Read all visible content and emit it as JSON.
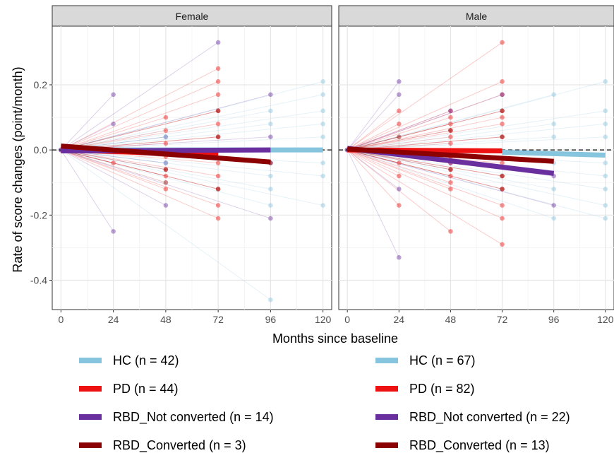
{
  "chart_data": {
    "type": "line",
    "xlabel": "Months since baseline",
    "ylabel": "Rate of score changes (point/month)",
    "x_ticks": [
      0,
      24,
      48,
      72,
      96,
      120
    ],
    "y_ticks": [
      0.2,
      0.0,
      -0.2,
      -0.4
    ],
    "y_tick_labels": [
      "0.2",
      "0.0",
      "-0.2",
      "-0.4"
    ],
    "xlim": [
      -4,
      124
    ],
    "ylim": [
      -0.49,
      0.38
    ],
    "grid": true,
    "reference_line": {
      "y": 0,
      "style": "dashed"
    },
    "colors": {
      "HC": "#87c4dd",
      "PD": "#ee1111",
      "RBD_Not converted": "#6a2f9f",
      "RBD_Converted": "#8b0000"
    },
    "panels": [
      {
        "facet": "Female",
        "legend": [
          {
            "group": "HC",
            "label": "HC (n = 42)"
          },
          {
            "group": "PD",
            "label": "PD (n = 44)"
          },
          {
            "group": "RBD_Not converted",
            "label": "RBD_Not converted (n = 14)"
          },
          {
            "group": "RBD_Converted",
            "label": "RBD_Converted (n = 3)"
          }
        ],
        "fitted_lines": [
          {
            "group": "HC",
            "x": [
              0,
              120
            ],
            "y": [
              0.0,
              0.0
            ]
          },
          {
            "group": "PD",
            "x": [
              0,
              72
            ],
            "y": [
              0.0,
              -0.015
            ]
          },
          {
            "group": "RBD_Not converted",
            "x": [
              0,
              96
            ],
            "y": [
              -0.003,
              0.0
            ]
          },
          {
            "group": "RBD_Converted",
            "x": [
              0,
              96
            ],
            "y": [
              0.012,
              -0.037
            ]
          }
        ],
        "individual_points": [
          {
            "group": "PD",
            "x": 24,
            "y": -0.04
          },
          {
            "group": "PD",
            "x": 48,
            "y": 0.1
          },
          {
            "group": "PD",
            "x": 48,
            "y": 0.06
          },
          {
            "group": "PD",
            "x": 48,
            "y": 0.02
          },
          {
            "group": "PD",
            "x": 48,
            "y": -0.02
          },
          {
            "group": "PD",
            "x": 48,
            "y": -0.06
          },
          {
            "group": "PD",
            "x": 48,
            "y": -0.08
          },
          {
            "group": "PD",
            "x": 48,
            "y": -0.12
          },
          {
            "group": "PD",
            "x": 72,
            "y": 0.25
          },
          {
            "group": "PD",
            "x": 72,
            "y": 0.21
          },
          {
            "group": "PD",
            "x": 72,
            "y": 0.17
          },
          {
            "group": "PD",
            "x": 72,
            "y": 0.12
          },
          {
            "group": "PD",
            "x": 72,
            "y": 0.08
          },
          {
            "group": "PD",
            "x": 72,
            "y": 0.04
          },
          {
            "group": "PD",
            "x": 72,
            "y": -0.04
          },
          {
            "group": "PD",
            "x": 72,
            "y": -0.08
          },
          {
            "group": "PD",
            "x": 72,
            "y": -0.12
          },
          {
            "group": "PD",
            "x": 72,
            "y": -0.17
          },
          {
            "group": "PD",
            "x": 72,
            "y": -0.21
          },
          {
            "group": "RBD_Not converted",
            "x": 24,
            "y": 0.17
          },
          {
            "group": "RBD_Not converted",
            "x": 24,
            "y": 0.08
          },
          {
            "group": "RBD_Not converted",
            "x": 24,
            "y": -0.25
          },
          {
            "group": "RBD_Not converted",
            "x": 48,
            "y": 0.04
          },
          {
            "group": "RBD_Not converted",
            "x": 48,
            "y": -0.04
          },
          {
            "group": "RBD_Not converted",
            "x": 48,
            "y": -0.17
          },
          {
            "group": "RBD_Not converted",
            "x": 72,
            "y": 0.33
          },
          {
            "group": "RBD_Not converted",
            "x": 96,
            "y": 0.17
          },
          {
            "group": "RBD_Not converted",
            "x": 96,
            "y": 0.04
          },
          {
            "group": "RBD_Not converted",
            "x": 96,
            "y": -0.04
          },
          {
            "group": "RBD_Not converted",
            "x": 96,
            "y": -0.21
          },
          {
            "group": "RBD_Converted",
            "x": 48,
            "y": -0.06
          },
          {
            "group": "RBD_Converted",
            "x": 48,
            "y": -0.1
          },
          {
            "group": "RBD_Converted",
            "x": 72,
            "y": 0.12
          },
          {
            "group": "RBD_Converted",
            "x": 72,
            "y": 0.04
          },
          {
            "group": "RBD_Converted",
            "x": 72,
            "y": -0.12
          },
          {
            "group": "RBD_Converted",
            "x": 96,
            "y": -0.04
          },
          {
            "group": "HC",
            "x": 48,
            "y": 0.04
          },
          {
            "group": "HC",
            "x": 48,
            "y": -0.04
          },
          {
            "group": "HC",
            "x": 96,
            "y": 0.12
          },
          {
            "group": "HC",
            "x": 96,
            "y": 0.08
          },
          {
            "group": "HC",
            "x": 96,
            "y": -0.08
          },
          {
            "group": "HC",
            "x": 96,
            "y": -0.12
          },
          {
            "group": "HC",
            "x": 96,
            "y": -0.17
          },
          {
            "group": "HC",
            "x": 96,
            "y": -0.46
          },
          {
            "group": "HC",
            "x": 120,
            "y": 0.21
          },
          {
            "group": "HC",
            "x": 120,
            "y": 0.17
          },
          {
            "group": "HC",
            "x": 120,
            "y": 0.12
          },
          {
            "group": "HC",
            "x": 120,
            "y": 0.08
          },
          {
            "group": "HC",
            "x": 120,
            "y": 0.04
          },
          {
            "group": "HC",
            "x": 120,
            "y": -0.04
          },
          {
            "group": "HC",
            "x": 120,
            "y": -0.08
          },
          {
            "group": "HC",
            "x": 120,
            "y": -0.17
          }
        ]
      },
      {
        "facet": "Male",
        "legend": [
          {
            "group": "HC",
            "label": "HC (n = 67)"
          },
          {
            "group": "PD",
            "label": "PD (n = 82)"
          },
          {
            "group": "RBD_Not converted",
            "label": "RBD_Not converted (n = 22)"
          },
          {
            "group": "RBD_Converted",
            "label": "RBD_Converted (n = 13)"
          }
        ],
        "fitted_lines": [
          {
            "group": "HC",
            "x": [
              72,
              120
            ],
            "y": [
              -0.007,
              -0.016
            ]
          },
          {
            "group": "PD",
            "x": [
              0,
              72
            ],
            "y": [
              0.0,
              -0.003
            ]
          },
          {
            "group": "RBD_Not converted",
            "x": [
              0,
              96
            ],
            "y": [
              0.005,
              -0.072
            ]
          },
          {
            "group": "RBD_Converted",
            "x": [
              0,
              96
            ],
            "y": [
              0.003,
              -0.035
            ]
          }
        ],
        "individual_points": [
          {
            "group": "PD",
            "x": 24,
            "y": 0.12
          },
          {
            "group": "PD",
            "x": 24,
            "y": 0.08
          },
          {
            "group": "PD",
            "x": 24,
            "y": -0.04
          },
          {
            "group": "PD",
            "x": 24,
            "y": -0.08
          },
          {
            "group": "PD",
            "x": 24,
            "y": -0.17
          },
          {
            "group": "PD",
            "x": 48,
            "y": 0.12
          },
          {
            "group": "PD",
            "x": 48,
            "y": 0.1
          },
          {
            "group": "PD",
            "x": 48,
            "y": 0.08
          },
          {
            "group": "PD",
            "x": 48,
            "y": 0.06
          },
          {
            "group": "PD",
            "x": 48,
            "y": 0.04
          },
          {
            "group": "PD",
            "x": 48,
            "y": 0.02
          },
          {
            "group": "PD",
            "x": 48,
            "y": -0.02
          },
          {
            "group": "PD",
            "x": 48,
            "y": -0.04
          },
          {
            "group": "PD",
            "x": 48,
            "y": -0.06
          },
          {
            "group": "PD",
            "x": 48,
            "y": -0.08
          },
          {
            "group": "PD",
            "x": 48,
            "y": -0.1
          },
          {
            "group": "PD",
            "x": 48,
            "y": -0.12
          },
          {
            "group": "PD",
            "x": 48,
            "y": -0.25
          },
          {
            "group": "PD",
            "x": 72,
            "y": 0.33
          },
          {
            "group": "PD",
            "x": 72,
            "y": 0.21
          },
          {
            "group": "PD",
            "x": 72,
            "y": 0.17
          },
          {
            "group": "PD",
            "x": 72,
            "y": 0.12
          },
          {
            "group": "PD",
            "x": 72,
            "y": 0.1
          },
          {
            "group": "PD",
            "x": 72,
            "y": 0.08
          },
          {
            "group": "PD",
            "x": 72,
            "y": 0.04
          },
          {
            "group": "PD",
            "x": 72,
            "y": -0.04
          },
          {
            "group": "PD",
            "x": 72,
            "y": -0.08
          },
          {
            "group": "PD",
            "x": 72,
            "y": -0.12
          },
          {
            "group": "PD",
            "x": 72,
            "y": -0.17
          },
          {
            "group": "PD",
            "x": 72,
            "y": -0.21
          },
          {
            "group": "PD",
            "x": 72,
            "y": -0.29
          },
          {
            "group": "RBD_Not converted",
            "x": 24,
            "y": 0.21
          },
          {
            "group": "RBD_Not converted",
            "x": 24,
            "y": 0.17
          },
          {
            "group": "RBD_Not converted",
            "x": 24,
            "y": -0.12
          },
          {
            "group": "RBD_Not converted",
            "x": 24,
            "y": -0.33
          },
          {
            "group": "RBD_Not converted",
            "x": 48,
            "y": 0.12
          },
          {
            "group": "RBD_Not converted",
            "x": 48,
            "y": -0.04
          },
          {
            "group": "RBD_Not converted",
            "x": 72,
            "y": 0.17
          },
          {
            "group": "RBD_Not converted",
            "x": 96,
            "y": -0.08
          },
          {
            "group": "RBD_Not converted",
            "x": 96,
            "y": -0.17
          },
          {
            "group": "RBD_Converted",
            "x": 24,
            "y": 0.04
          },
          {
            "group": "RBD_Converted",
            "x": 48,
            "y": 0.06
          },
          {
            "group": "RBD_Converted",
            "x": 48,
            "y": -0.06
          },
          {
            "group": "RBD_Converted",
            "x": 72,
            "y": 0.12
          },
          {
            "group": "RBD_Converted",
            "x": 72,
            "y": 0.04
          },
          {
            "group": "RBD_Converted",
            "x": 72,
            "y": -0.08
          },
          {
            "group": "RBD_Converted",
            "x": 72,
            "y": -0.12
          },
          {
            "group": "HC",
            "x": 96,
            "y": 0.17
          },
          {
            "group": "HC",
            "x": 96,
            "y": 0.08
          },
          {
            "group": "HC",
            "x": 96,
            "y": 0.04
          },
          {
            "group": "HC",
            "x": 96,
            "y": -0.04
          },
          {
            "group": "HC",
            "x": 96,
            "y": -0.12
          },
          {
            "group": "HC",
            "x": 96,
            "y": -0.21
          },
          {
            "group": "HC",
            "x": 120,
            "y": 0.21
          },
          {
            "group": "HC",
            "x": 120,
            "y": 0.12
          },
          {
            "group": "HC",
            "x": 120,
            "y": 0.08
          },
          {
            "group": "HC",
            "x": 120,
            "y": 0.04
          },
          {
            "group": "HC",
            "x": 120,
            "y": -0.04
          },
          {
            "group": "HC",
            "x": 120,
            "y": -0.08
          },
          {
            "group": "HC",
            "x": 120,
            "y": -0.12
          },
          {
            "group": "HC",
            "x": 120,
            "y": -0.17
          },
          {
            "group": "HC",
            "x": 120,
            "y": -0.21
          }
        ]
      }
    ]
  }
}
